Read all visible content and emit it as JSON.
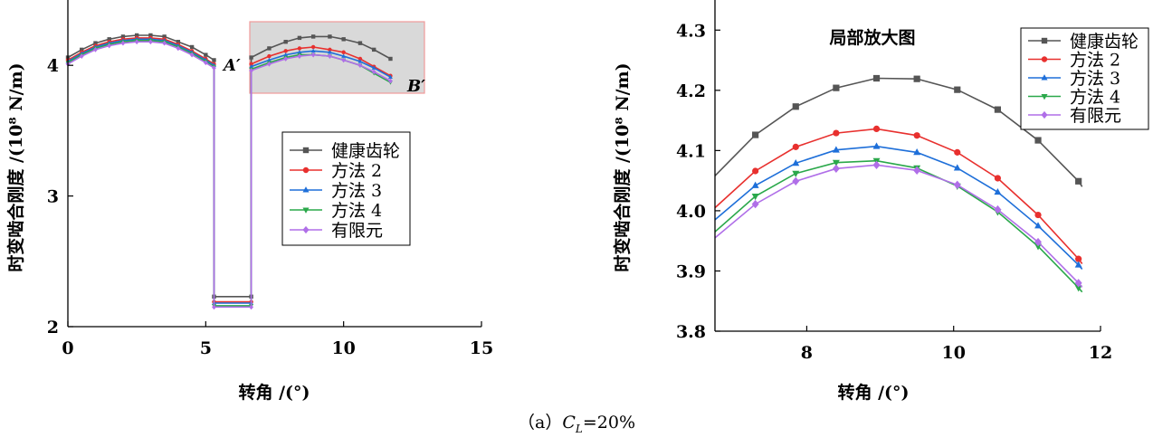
{
  "caption": {
    "prefix": "（a）",
    "var_main": "C",
    "var_sub": "L",
    "value": "=20%"
  },
  "chart_data": [
    {
      "type": "line",
      "xlabel": "转角 /(°)",
      "ylabel": "时变啮合刚度 /(10⁸ N/m)",
      "xlim": [
        0,
        15
      ],
      "ylim": [
        2,
        4.5
      ],
      "xticks": [
        0,
        5,
        10,
        15
      ],
      "yticks": [
        2,
        3,
        4
      ],
      "legend_position": "center-right",
      "annotations": [
        "A′",
        "B′"
      ],
      "zoom_box": {
        "x": [
          6.65,
          12.2
        ],
        "y": [
          3.8,
          4.4
        ]
      },
      "series": [
        {
          "name": "健康齿轮",
          "color": "#555555",
          "marker": "square",
          "points": [
            [
              0.0,
              4.06
            ],
            [
              0.5,
              4.12
            ],
            [
              1.0,
              4.17
            ],
            [
              1.5,
              4.2
            ],
            [
              2.0,
              4.22
            ],
            [
              2.5,
              4.23
            ],
            [
              3.0,
              4.23
            ],
            [
              3.5,
              4.22
            ],
            [
              4.0,
              4.18
            ],
            [
              4.5,
              4.14
            ],
            [
              5.0,
              4.08
            ],
            [
              5.3,
              4.04
            ],
            [
              5.3,
              2.23
            ],
            [
              6.65,
              2.23
            ],
            [
              6.65,
              4.06
            ],
            [
              7.3,
              4.13
            ],
            [
              7.9,
              4.18
            ],
            [
              8.4,
              4.21
            ],
            [
              8.9,
              4.22
            ],
            [
              9.5,
              4.22
            ],
            [
              10.0,
              4.2
            ],
            [
              10.6,
              4.17
            ],
            [
              11.1,
              4.12
            ],
            [
              11.7,
              4.05
            ]
          ]
        },
        {
          "name": "方法 2",
          "color": "#e8302e",
          "marker": "circle",
          "points": [
            [
              0.0,
              4.04
            ],
            [
              0.5,
              4.1
            ],
            [
              1.0,
              4.15
            ],
            [
              1.5,
              4.18
            ],
            [
              2.0,
              4.2
            ],
            [
              2.5,
              4.21
            ],
            [
              3.0,
              4.21
            ],
            [
              3.5,
              4.2
            ],
            [
              4.0,
              4.16
            ],
            [
              4.5,
              4.11
            ],
            [
              5.0,
              4.05
            ],
            [
              5.3,
              4.01
            ],
            [
              5.3,
              2.19
            ],
            [
              6.65,
              2.19
            ],
            [
              6.65,
              4.01
            ],
            [
              7.3,
              4.07
            ],
            [
              7.9,
              4.11
            ],
            [
              8.4,
              4.13
            ],
            [
              8.9,
              4.14
            ],
            [
              9.5,
              4.12
            ],
            [
              10.0,
              4.1
            ],
            [
              10.6,
              4.05
            ],
            [
              11.1,
              3.99
            ],
            [
              11.7,
              3.92
            ]
          ]
        },
        {
          "name": "方法 3",
          "color": "#1e6fd9",
          "marker": "triangle-up",
          "points": [
            [
              0.0,
              4.03
            ],
            [
              0.5,
              4.09
            ],
            [
              1.0,
              4.14
            ],
            [
              1.5,
              4.17
            ],
            [
              2.0,
              4.19
            ],
            [
              2.5,
              4.2
            ],
            [
              3.0,
              4.2
            ],
            [
              3.5,
              4.19
            ],
            [
              4.0,
              4.15
            ],
            [
              4.5,
              4.1
            ],
            [
              5.0,
              4.04
            ],
            [
              5.3,
              4.0
            ],
            [
              5.3,
              2.18
            ],
            [
              6.65,
              2.18
            ],
            [
              6.65,
              3.99
            ],
            [
              7.3,
              4.04
            ],
            [
              7.9,
              4.08
            ],
            [
              8.4,
              4.1
            ],
            [
              8.9,
              4.11
            ],
            [
              9.5,
              4.1
            ],
            [
              10.0,
              4.07
            ],
            [
              10.6,
              4.03
            ],
            [
              11.1,
              3.98
            ],
            [
              11.7,
              3.91
            ]
          ]
        },
        {
          "name": "方法 4",
          "color": "#2aa84a",
          "marker": "triangle-down",
          "points": [
            [
              0.0,
              4.02
            ],
            [
              0.5,
              4.08
            ],
            [
              1.0,
              4.13
            ],
            [
              1.5,
              4.16
            ],
            [
              2.0,
              4.18
            ],
            [
              2.5,
              4.19
            ],
            [
              3.0,
              4.19
            ],
            [
              3.5,
              4.18
            ],
            [
              4.0,
              4.14
            ],
            [
              4.5,
              4.09
            ],
            [
              5.0,
              4.03
            ],
            [
              5.3,
              3.99
            ],
            [
              5.3,
              2.16
            ],
            [
              6.65,
              2.16
            ],
            [
              6.65,
              3.97
            ],
            [
              7.3,
              4.02
            ],
            [
              7.9,
              4.06
            ],
            [
              8.4,
              4.08
            ],
            [
              8.9,
              4.08
            ],
            [
              9.5,
              4.07
            ],
            [
              10.0,
              4.04
            ],
            [
              10.6,
              4.0
            ],
            [
              11.1,
              3.94
            ],
            [
              11.7,
              3.87
            ]
          ]
        },
        {
          "name": "有限元",
          "color": "#b06fe8",
          "marker": "diamond",
          "points": [
            [
              0.0,
              4.01
            ],
            [
              0.5,
              4.07
            ],
            [
              1.0,
              4.12
            ],
            [
              1.5,
              4.15
            ],
            [
              2.0,
              4.17
            ],
            [
              2.5,
              4.18
            ],
            [
              3.0,
              4.18
            ],
            [
              3.5,
              4.17
            ],
            [
              4.0,
              4.13
            ],
            [
              4.5,
              4.08
            ],
            [
              5.0,
              4.02
            ],
            [
              5.3,
              3.98
            ],
            [
              5.3,
              2.15
            ],
            [
              6.65,
              2.15
            ],
            [
              6.65,
              3.96
            ],
            [
              7.3,
              4.01
            ],
            [
              7.9,
              4.05
            ],
            [
              8.4,
              4.07
            ],
            [
              8.9,
              4.08
            ],
            [
              9.5,
              4.07
            ],
            [
              10.0,
              4.04
            ],
            [
              10.6,
              4.0
            ],
            [
              11.1,
              3.95
            ],
            [
              11.7,
              3.88
            ]
          ]
        }
      ]
    },
    {
      "type": "line",
      "title": "局部放大图",
      "xlabel": "转角 /(°)",
      "ylabel": "时变啮合刚度 /(10⁸ N/m)",
      "xlim": [
        6.75,
        12
      ],
      "ylim": [
        3.8,
        4.35
      ],
      "xticks": [
        8,
        10,
        12
      ],
      "yticks": [
        3.8,
        3.9,
        4.0,
        4.1,
        4.2,
        4.3
      ],
      "legend_position": "top-right",
      "series": [
        {
          "name": "健康齿轮",
          "color": "#555555",
          "marker": "square",
          "x": [
            6.75,
            7.3,
            7.85,
            8.4,
            8.95,
            9.5,
            10.05,
            10.6,
            11.15,
            11.7,
            11.75
          ],
          "y": [
            4.058,
            4.126,
            4.173,
            4.204,
            4.22,
            4.219,
            4.201,
            4.168,
            4.117,
            4.049,
            4.04
          ]
        },
        {
          "name": "方法 2",
          "color": "#e8302e",
          "marker": "circle",
          "x": [
            6.75,
            7.3,
            7.85,
            8.4,
            8.95,
            9.5,
            10.05,
            10.6,
            11.15,
            11.7,
            11.75
          ],
          "y": [
            4.005,
            4.066,
            4.106,
            4.129,
            4.136,
            4.125,
            4.097,
            4.054,
            3.993,
            3.92,
            3.912
          ]
        },
        {
          "name": "方法 3",
          "color": "#1e6fd9",
          "marker": "triangle-up",
          "x": [
            6.75,
            7.3,
            7.85,
            8.4,
            8.95,
            9.5,
            10.05,
            10.6,
            11.15,
            11.7,
            11.75
          ],
          "y": [
            3.985,
            4.042,
            4.079,
            4.101,
            4.107,
            4.097,
            4.071,
            4.031,
            3.975,
            3.91,
            3.903
          ]
        },
        {
          "name": "方法 4",
          "color": "#2aa84a",
          "marker": "triangle-down",
          "x": [
            6.75,
            7.3,
            7.85,
            8.4,
            8.95,
            9.5,
            10.05,
            10.6,
            11.15,
            11.7,
            11.75
          ],
          "y": [
            3.965,
            4.024,
            4.062,
            4.08,
            4.083,
            4.071,
            4.041,
            3.998,
            3.941,
            3.872,
            3.865
          ]
        },
        {
          "name": "有限元",
          "color": "#b06fe8",
          "marker": "diamond",
          "x": [
            6.75,
            7.3,
            7.85,
            8.4,
            8.95,
            9.5,
            10.05,
            10.6,
            11.15,
            11.7,
            11.75
          ],
          "y": [
            3.955,
            4.011,
            4.049,
            4.07,
            4.076,
            4.067,
            4.043,
            4.002,
            3.948,
            3.88,
            3.873
          ]
        }
      ]
    }
  ]
}
